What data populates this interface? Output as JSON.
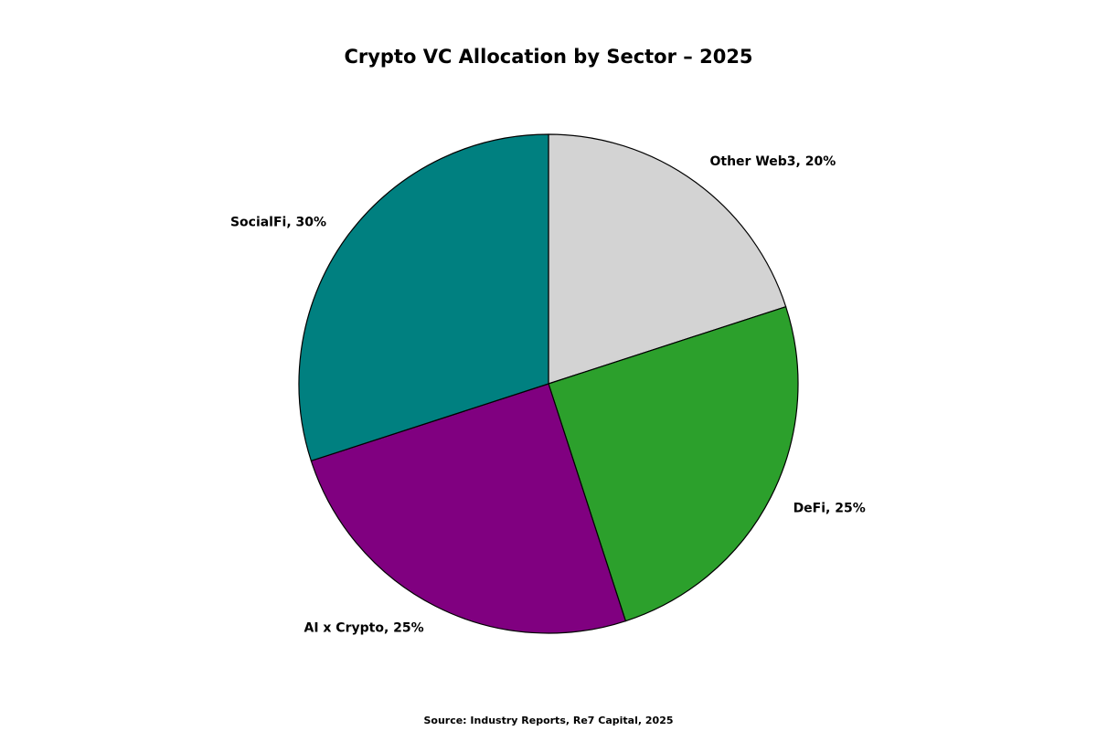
{
  "chart_data": {
    "type": "pie",
    "title": "Crypto VC Allocation by Sector – 2025",
    "source": "Source: Industry Reports, Re7 Capital, 2025",
    "start_angle_deg": 90,
    "direction": "clockwise",
    "slices": [
      {
        "label": "Other Web3",
        "value": 20,
        "display": "Other Web3, 20%",
        "color": "#d3d3d3"
      },
      {
        "label": "DeFi",
        "value": 25,
        "display": "DeFi, 25%",
        "color": "#2ca02c"
      },
      {
        "label": "AI x Crypto",
        "value": 25,
        "display": "AI x Crypto, 25%",
        "color": "#800080"
      },
      {
        "label": "SocialFi",
        "value": 30,
        "display": "SocialFi, 30%",
        "color": "#008080"
      }
    ],
    "edge_color": "#000000"
  }
}
